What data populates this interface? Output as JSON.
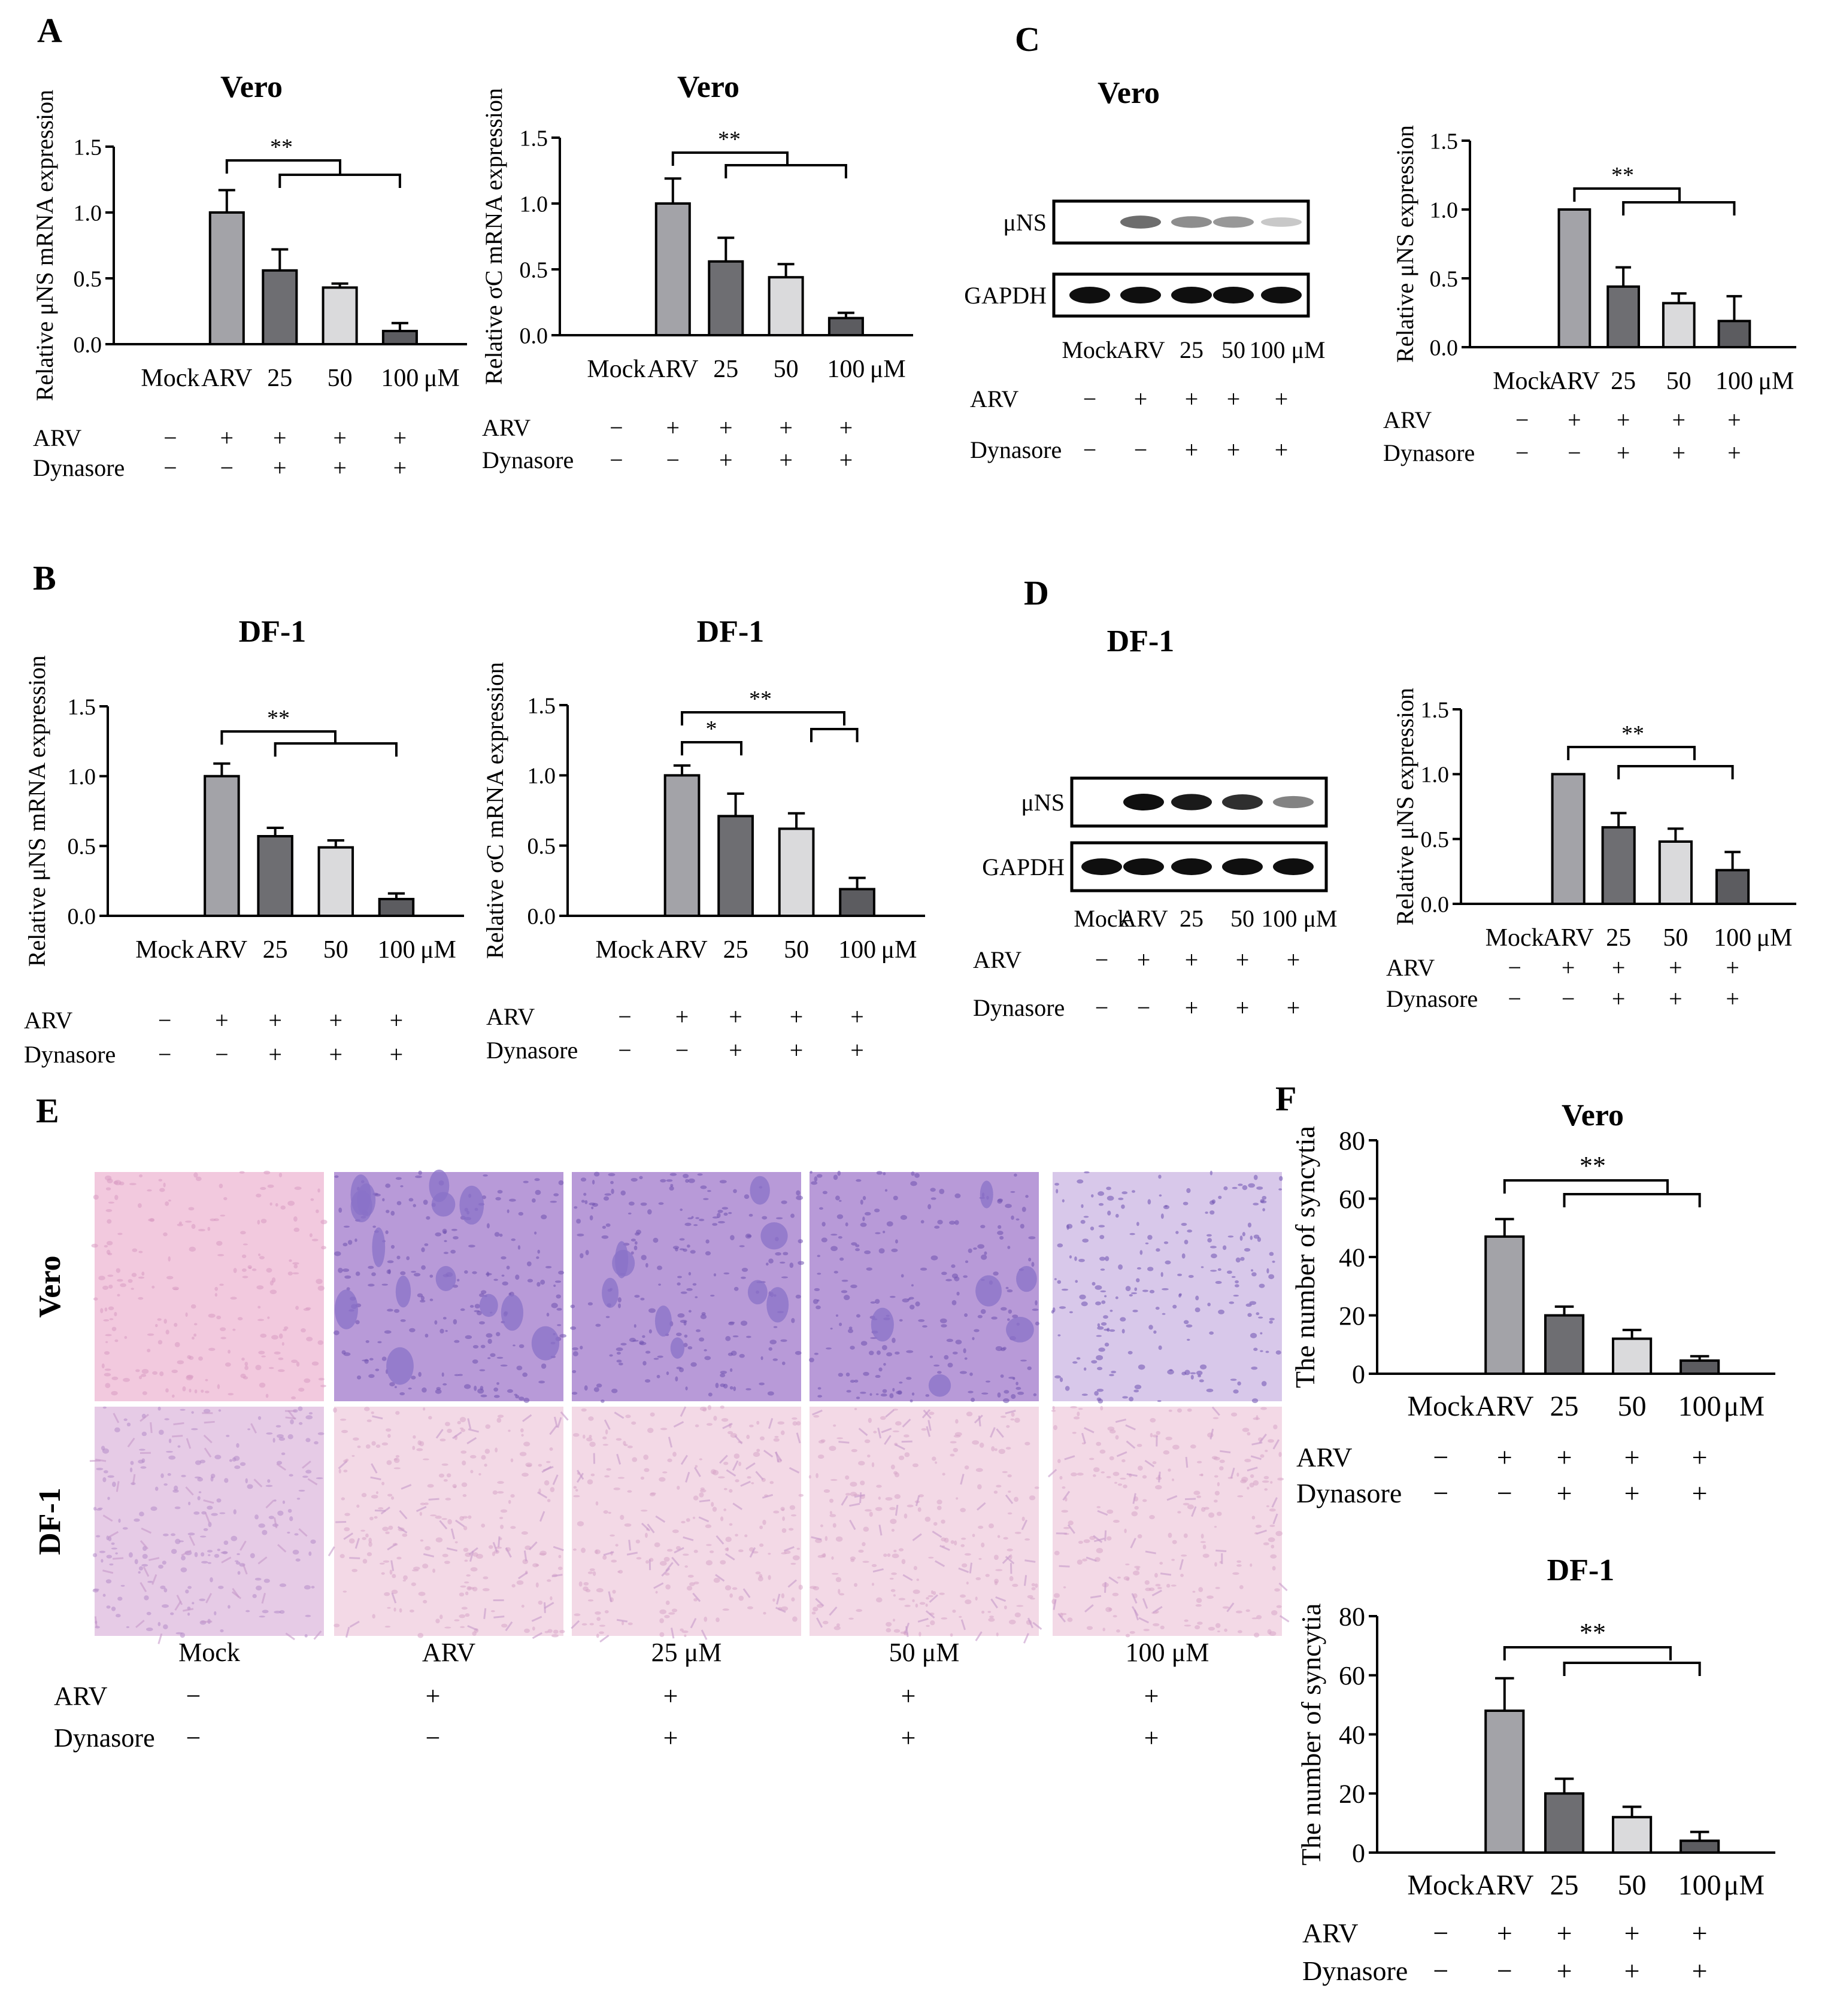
{
  "panel_letters": [
    "A",
    "B",
    "C",
    "D",
    "E",
    "F"
  ],
  "treatment_rows": {
    "arv_label": "ARV",
    "dynasore_label": "Dynasore",
    "arv": [
      "−",
      "+",
      "+",
      "+",
      "+"
    ],
    "dynasore": [
      "−",
      "−",
      "+",
      "+",
      "+"
    ]
  },
  "colors": {
    "mock": "#ffffff",
    "arv": "#a3a3a8",
    "d25": "#6e6e72",
    "d50": "#dadadc",
    "d100": "#5c5c60",
    "vero_stain": "#8a6cc0",
    "df1_stain": "#e8c7dd"
  },
  "chart_data": [
    {
      "id": "A1",
      "type": "bar",
      "title": "Vero",
      "ylabel": "Relative μNS mRNA expression",
      "categories": [
        "Mock",
        "ARV",
        "25",
        "50",
        "100"
      ],
      "unit": "μM",
      "values": [
        0,
        1.0,
        0.56,
        0.43,
        0.1
      ],
      "errors": [
        0,
        0.17,
        0.16,
        0.03,
        0.06
      ],
      "ylim": [
        0,
        1.5
      ],
      "yticks": [
        "0.0",
        "0.5",
        "1.0",
        "1.5"
      ],
      "significance": [
        {
          "label": "**",
          "from": 1,
          "to": [
            2,
            3,
            4
          ]
        }
      ]
    },
    {
      "id": "A2",
      "type": "bar",
      "title": "Vero",
      "ylabel": "Relative σC mRNA expression",
      "categories": [
        "Mock",
        "ARV",
        "25",
        "50",
        "100"
      ],
      "unit": "μM",
      "values": [
        0,
        1.0,
        0.56,
        0.44,
        0.13
      ],
      "errors": [
        0,
        0.19,
        0.18,
        0.1,
        0.04
      ],
      "ylim": [
        0,
        1.5
      ],
      "yticks": [
        "0.0",
        "0.5",
        "1.0",
        "1.5"
      ],
      "significance": [
        {
          "label": "**",
          "from": 1,
          "to": [
            2,
            3,
            4
          ]
        }
      ]
    },
    {
      "id": "B1",
      "type": "bar",
      "title": "DF-1",
      "ylabel": "Relative μNS mRNA expression",
      "categories": [
        "Mock",
        "ARV",
        "25",
        "50",
        "100"
      ],
      "unit": "μM",
      "values": [
        0,
        1.0,
        0.57,
        0.49,
        0.12
      ],
      "errors": [
        0,
        0.09,
        0.06,
        0.05,
        0.04
      ],
      "ylim": [
        0,
        1.5
      ],
      "yticks": [
        "0.0",
        "0.5",
        "1.0",
        "1.5"
      ],
      "significance": [
        {
          "label": "**",
          "from": 1,
          "to": [
            2,
            3,
            4
          ]
        }
      ]
    },
    {
      "id": "B2",
      "type": "bar",
      "title": "DF-1",
      "ylabel": "Relative σC mRNA expression",
      "categories": [
        "Mock",
        "ARV",
        "25",
        "50",
        "100"
      ],
      "unit": "μM",
      "values": [
        0,
        1.0,
        0.71,
        0.62,
        0.19
      ],
      "errors": [
        0,
        0.07,
        0.16,
        0.11,
        0.08
      ],
      "ylim": [
        0,
        1.5
      ],
      "yticks": [
        "0.0",
        "0.5",
        "1.0",
        "1.5"
      ],
      "significance": [
        {
          "label": "*",
          "from": 1,
          "to": [
            2
          ]
        },
        {
          "label": "**",
          "from": 1,
          "to": [
            3,
            4
          ]
        }
      ]
    },
    {
      "id": "C2",
      "type": "bar",
      "ylabel": "Relative μNS expression",
      "categories": [
        "Mock",
        "ARV",
        "25",
        "50",
        "100"
      ],
      "unit": "μM",
      "values": [
        0,
        1.0,
        0.44,
        0.32,
        0.19
      ],
      "errors": [
        0,
        0,
        0.14,
        0.07,
        0.18
      ],
      "ylim": [
        0,
        1.5
      ],
      "yticks": [
        "0.0",
        "0.5",
        "1.0",
        "1.5"
      ],
      "significance": [
        {
          "label": "**",
          "from": 1,
          "to": [
            2,
            3,
            4
          ]
        }
      ]
    },
    {
      "id": "D2",
      "type": "bar",
      "ylabel": "Relative μNS expression",
      "categories": [
        "Mock",
        "ARV",
        "25",
        "50",
        "100"
      ],
      "unit": "μM",
      "values": [
        0,
        1.0,
        0.59,
        0.48,
        0.26
      ],
      "errors": [
        0,
        0,
        0.11,
        0.1,
        0.14
      ],
      "ylim": [
        0,
        1.5
      ],
      "yticks": [
        "0.0",
        "0.5",
        "1.0",
        "1.5"
      ],
      "significance": [
        {
          "label": "**",
          "from": 1,
          "to": [
            2,
            3,
            4
          ]
        }
      ]
    },
    {
      "id": "F1",
      "type": "bar",
      "title": "Vero",
      "ylabel": "The  number of syncytia",
      "categories": [
        "Mock",
        "ARV",
        "25",
        "50",
        "100"
      ],
      "unit": "μM",
      "values": [
        0,
        47,
        20,
        12,
        4.5
      ],
      "errors": [
        0,
        6,
        3,
        3,
        1.5
      ],
      "ylim": [
        0,
        80
      ],
      "yticks": [
        "0",
        "20",
        "40",
        "60",
        "80"
      ],
      "significance": [
        {
          "label": "**",
          "from": 1,
          "to": [
            2,
            3,
            4
          ]
        }
      ]
    },
    {
      "id": "F2",
      "type": "bar",
      "title": "DF-1",
      "ylabel": "The  number of syncytia",
      "categories": [
        "Mock",
        "ARV",
        "25",
        "50",
        "100"
      ],
      "unit": "μM",
      "values": [
        0,
        48,
        20,
        12,
        4
      ],
      "errors": [
        0,
        11,
        5,
        3.5,
        3
      ],
      "ylim": [
        0,
        80
      ],
      "yticks": [
        "0",
        "20",
        "40",
        "60",
        "80"
      ],
      "significance": [
        {
          "label": "**",
          "from": 1,
          "to": [
            2,
            3,
            4
          ]
        }
      ]
    }
  ],
  "blots": [
    {
      "id": "C1",
      "title": "Vero",
      "bands": [
        "μNS",
        "GAPDH"
      ],
      "lanes": [
        "Mock",
        "ARV",
        "25",
        "50",
        "100 μM"
      ],
      "intensity": [
        [
          0,
          0.55,
          0.4,
          0.35,
          0.12
        ],
        [
          1,
          1,
          1,
          1,
          1
        ]
      ]
    },
    {
      "id": "D1",
      "title": "DF-1",
      "bands": [
        "μNS",
        "GAPDH"
      ],
      "lanes": [
        "Mock",
        "ARV",
        "25",
        "50",
        "100 μM"
      ],
      "intensity": [
        [
          0,
          1,
          0.95,
          0.85,
          0.45
        ],
        [
          1,
          1,
          1,
          1,
          1
        ]
      ]
    }
  ],
  "micrographs": {
    "rows": [
      "Vero",
      "DF-1"
    ],
    "columns": [
      "Mock",
      "ARV",
      "25 μM",
      "50 μM",
      "100 μM"
    ]
  }
}
